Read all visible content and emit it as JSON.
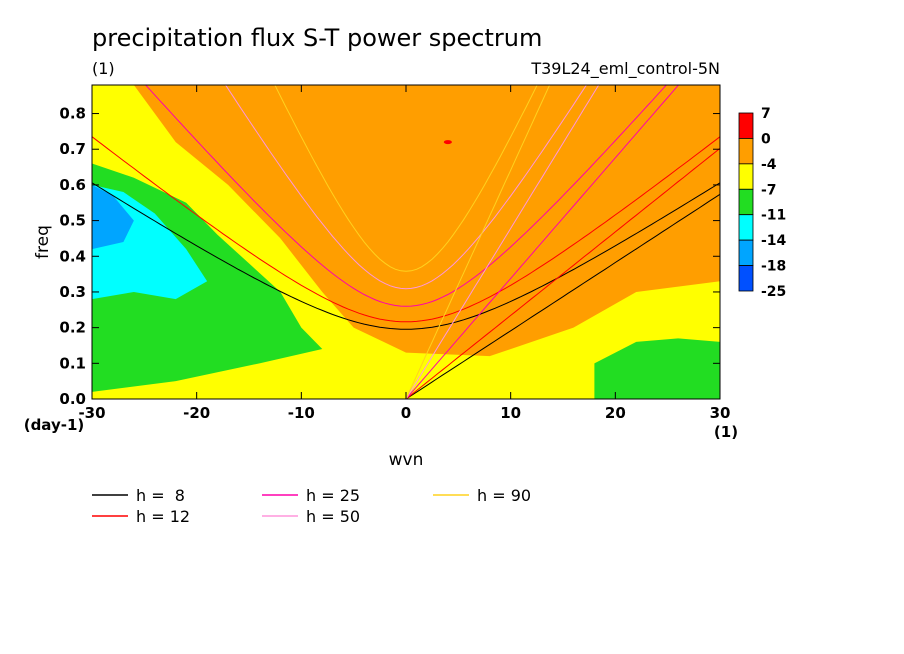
{
  "chart_data": {
    "type": "heatmap",
    "title": "precipitation flux S-T power spectrum",
    "subtitle_left": "(1)",
    "subtitle_right": "T39L24_eml_control-5N",
    "xlabel": "wvn",
    "ylabel": "freq",
    "x_unit_label": "(1)",
    "y_unit_label": "(day-1)",
    "xlim": [
      -30,
      30
    ],
    "ylim": [
      0.0,
      0.88
    ],
    "x_ticks": [
      -30,
      -20,
      -10,
      0,
      10,
      20,
      30
    ],
    "x_tick_labels": [
      "-30",
      "-20",
      "-10",
      "0",
      "10",
      "20",
      "30"
    ],
    "y_ticks": [
      0.0,
      0.1,
      0.2,
      0.3,
      0.4,
      0.5,
      0.6,
      0.7,
      0.8
    ],
    "y_tick_labels": [
      "0.0",
      "0.1",
      "0.2",
      "0.3",
      "0.4",
      "0.5",
      "0.6",
      "0.7",
      "0.8"
    ],
    "colorbar": {
      "labels": [
        "7",
        "0",
        "-4",
        "-7",
        "-11",
        "-14",
        "-18",
        "-25"
      ],
      "colors": [
        "#ff0000",
        "#ff9e00",
        "#ffff00",
        "#22dd22",
        "#00ffff",
        "#00a5ff",
        "#0050ff"
      ]
    },
    "background_level_color": "#ff9e00",
    "dispersion_curves": [
      {
        "label": "h =  8",
        "h": 8,
        "color": "#000000"
      },
      {
        "label": "h = 12",
        "h": 12,
        "color": "#ff0000"
      },
      {
        "label": "h = 25",
        "h": 25,
        "color": "#ff00aa"
      },
      {
        "label": "h = 50",
        "h": 50,
        "color": "#ff96dc"
      },
      {
        "label": "h = 90",
        "h": 90,
        "color": "#ffd21e"
      }
    ]
  }
}
